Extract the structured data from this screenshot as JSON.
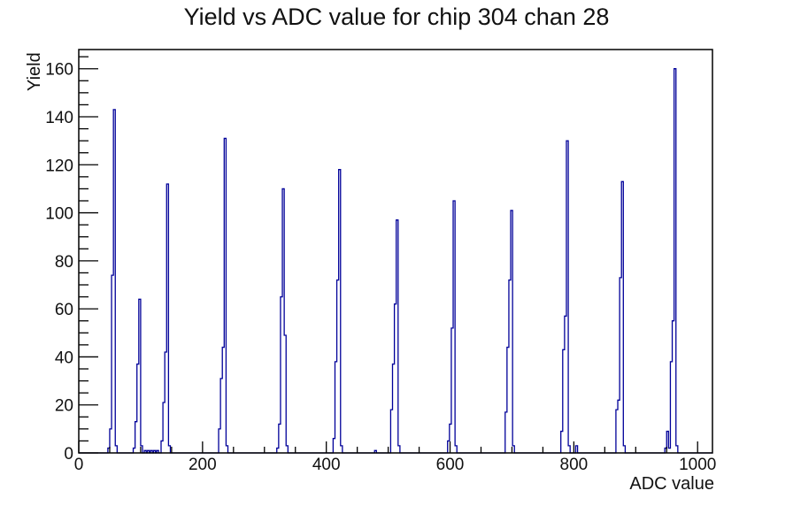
{
  "title": "Yield vs ADC value for chip 304 chan 28",
  "chart_data": {
    "type": "bar",
    "subtype": "root-style-histogram",
    "title": "Yield vs ADC value for chip 304 chan 28",
    "xlabel": "ADC value",
    "ylabel": "Yield",
    "xlim": [
      0,
      1024
    ],
    "ylim": [
      0,
      168
    ],
    "x_major_ticks": [
      0,
      200,
      400,
      600,
      800,
      1000
    ],
    "x_minor_step": 50,
    "y_major_ticks": [
      0,
      20,
      40,
      60,
      80,
      100,
      120,
      140,
      160
    ],
    "y_minor_step": 5,
    "grid": false,
    "legend": false,
    "line_color": "#000099",
    "frame_color": "#000000",
    "background_color": "#ffffff",
    "bin_width": 3,
    "bins": [
      [
        47,
        2
      ],
      [
        50,
        10
      ],
      [
        53,
        74
      ],
      [
        56,
        143
      ],
      [
        59,
        3
      ],
      [
        88,
        2
      ],
      [
        91,
        13
      ],
      [
        94,
        37
      ],
      [
        97,
        64
      ],
      [
        100,
        3
      ],
      [
        106,
        1
      ],
      [
        111,
        1
      ],
      [
        116,
        1
      ],
      [
        121,
        1
      ],
      [
        126,
        1
      ],
      [
        133,
        5
      ],
      [
        136,
        21
      ],
      [
        139,
        42
      ],
      [
        142,
        112
      ],
      [
        145,
        3
      ],
      [
        226,
        10
      ],
      [
        229,
        31
      ],
      [
        232,
        44
      ],
      [
        235,
        131
      ],
      [
        238,
        3
      ],
      [
        320,
        2
      ],
      [
        323,
        12
      ],
      [
        326,
        65
      ],
      [
        329,
        110
      ],
      [
        332,
        49
      ],
      [
        335,
        3
      ],
      [
        411,
        6
      ],
      [
        414,
        38
      ],
      [
        417,
        72
      ],
      [
        420,
        118
      ],
      [
        423,
        3
      ],
      [
        478,
        1
      ],
      [
        504,
        18
      ],
      [
        507,
        37
      ],
      [
        510,
        62
      ],
      [
        513,
        97
      ],
      [
        516,
        3
      ],
      [
        596,
        5
      ],
      [
        599,
        12
      ],
      [
        602,
        52
      ],
      [
        605,
        105
      ],
      [
        608,
        3
      ],
      [
        689,
        17
      ],
      [
        692,
        44
      ],
      [
        695,
        72
      ],
      [
        698,
        101
      ],
      [
        701,
        3
      ],
      [
        779,
        9
      ],
      [
        782,
        43
      ],
      [
        785,
        57
      ],
      [
        788,
        130
      ],
      [
        791,
        3
      ],
      [
        803,
        3
      ],
      [
        868,
        18
      ],
      [
        871,
        22
      ],
      [
        874,
        73
      ],
      [
        877,
        113
      ],
      [
        880,
        3
      ],
      [
        947,
        2
      ],
      [
        950,
        9
      ],
      [
        953,
        2
      ],
      [
        956,
        38
      ],
      [
        959,
        55
      ],
      [
        962,
        160
      ],
      [
        965,
        3
      ]
    ],
    "peaks": [
      {
        "adc": 56,
        "yield": 143
      },
      {
        "adc": 97,
        "yield": 64
      },
      {
        "adc": 142,
        "yield": 112
      },
      {
        "adc": 235,
        "yield": 131
      },
      {
        "adc": 329,
        "yield": 110
      },
      {
        "adc": 420,
        "yield": 118
      },
      {
        "adc": 513,
        "yield": 97
      },
      {
        "adc": 605,
        "yield": 105
      },
      {
        "adc": 698,
        "yield": 101
      },
      {
        "adc": 788,
        "yield": 130
      },
      {
        "adc": 877,
        "yield": 113
      },
      {
        "adc": 962,
        "yield": 160
      }
    ]
  }
}
